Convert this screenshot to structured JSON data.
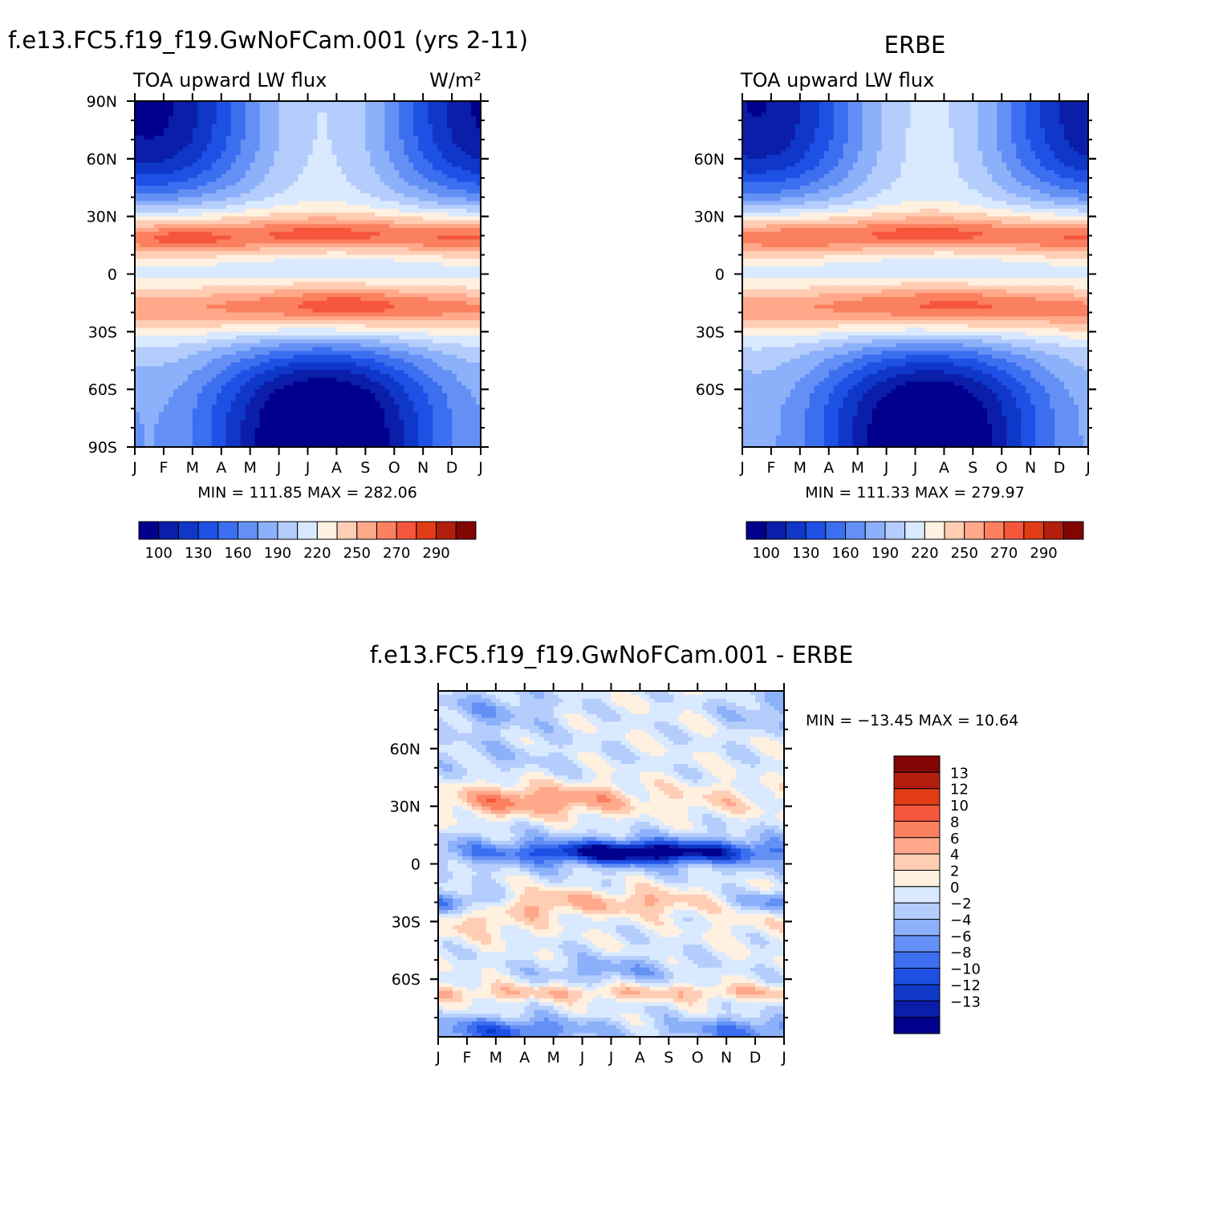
{
  "chart_data": [
    {
      "type": "heatmap",
      "title": "f.e13.FC5.f19_f19.GwNoFCam.001 (yrs 2-11)",
      "subtitle": "TOA upward LW flux",
      "units": "W/m²",
      "x_ticks": [
        "J",
        "F",
        "M",
        "A",
        "M",
        "J",
        "J",
        "A",
        "S",
        "O",
        "N",
        "D",
        "J"
      ],
      "y_ticks": [
        "90N",
        "60N",
        "30N",
        "0",
        "30S",
        "60S",
        "90S"
      ],
      "ylim": [
        -90,
        90
      ],
      "stats": "MIN = 111.85 MAX = 282.06",
      "min": 111.85,
      "max": 282.06,
      "colorbar_labels": [
        "100",
        "130",
        "160",
        "190",
        "220",
        "250",
        "270",
        "290"
      ],
      "levels": [
        100,
        115,
        130,
        145,
        160,
        175,
        190,
        205,
        220,
        235,
        250,
        260,
        270,
        280,
        290
      ],
      "colors": [
        "#00008c",
        "#0a1eaa",
        "#0f37c8",
        "#1e50e6",
        "#3c6ef0",
        "#6490f5",
        "#8cb0fa",
        "#b4cdfc",
        "#d9e9ff",
        "#fff0e0",
        "#ffcdb4",
        "#ffa88a",
        "#fa8060",
        "#f5563c",
        "#e13c14",
        "#b41e0f",
        "#820505"
      ]
    },
    {
      "type": "heatmap",
      "title": "ERBE",
      "subtitle": "TOA upward LW flux",
      "x_ticks": [
        "J",
        "F",
        "M",
        "A",
        "M",
        "J",
        "J",
        "A",
        "S",
        "O",
        "N",
        "D",
        "J"
      ],
      "y_ticks": [
        "60N",
        "30N",
        "0",
        "30S",
        "60S"
      ],
      "ylim": [
        -90,
        90
      ],
      "stats": "MIN = 111.33 MAX = 279.97",
      "min": 111.33,
      "max": 279.97,
      "colorbar_labels": [
        "100",
        "130",
        "160",
        "190",
        "220",
        "250",
        "270",
        "290"
      ],
      "levels": [
        100,
        115,
        130,
        145,
        160,
        175,
        190,
        205,
        220,
        235,
        250,
        260,
        270,
        280,
        290
      ],
      "colors": [
        "#00008c",
        "#0a1eaa",
        "#0f37c8",
        "#1e50e6",
        "#3c6ef0",
        "#6490f5",
        "#8cb0fa",
        "#b4cdfc",
        "#d9e9ff",
        "#fff0e0",
        "#ffcdb4",
        "#ffa88a",
        "#fa8060",
        "#f5563c",
        "#e13c14",
        "#b41e0f",
        "#820505"
      ]
    },
    {
      "type": "heatmap",
      "title": "f.e13.FC5.f19_f19.GwNoFCam.001 - ERBE",
      "x_ticks": [
        "J",
        "F",
        "M",
        "A",
        "M",
        "J",
        "J",
        "A",
        "S",
        "O",
        "N",
        "D",
        "J"
      ],
      "y_ticks": [
        "60N",
        "30N",
        "0",
        "30S",
        "60S"
      ],
      "ylim": [
        -90,
        90
      ],
      "stats": "MIN = −13.45 MAX =   10.64",
      "min": -13.45,
      "max": 10.64,
      "colorbar_labels": [
        "13",
        "12",
        "10",
        "8",
        "6",
        "4",
        "2",
        "0",
        "−2",
        "−4",
        "−6",
        "−8",
        "−10",
        "−12",
        "−13"
      ],
      "levels": [
        -13,
        -12,
        -10,
        -8,
        -6,
        -4,
        -2,
        0,
        2,
        4,
        6,
        8,
        10,
        12,
        13
      ],
      "colors": [
        "#00008c",
        "#0a1eaa",
        "#0f37c8",
        "#1e50e6",
        "#3c6ef0",
        "#6490f5",
        "#8cb0fa",
        "#b4cdfc",
        "#d9e9ff",
        "#fff0e0",
        "#ffcdb4",
        "#ffa88a",
        "#fa8060",
        "#f5563c",
        "#e13c14",
        "#b41e0f",
        "#820505"
      ]
    }
  ]
}
